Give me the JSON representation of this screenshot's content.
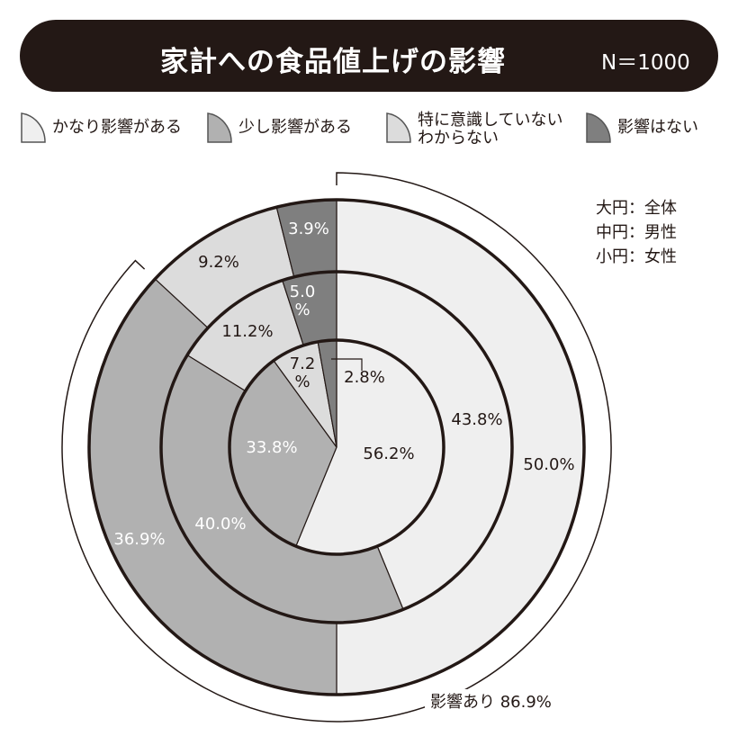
{
  "title": "家計への食品値上げの影響",
  "sample": "N＝1000",
  "key": [
    "大円：全体",
    "中円：男性",
    "小円：女性"
  ],
  "chart_data": {
    "type": "pie",
    "subtype": "nested-donut",
    "title": "家計への食品値上げの影響",
    "categories": [
      "かなり影響がある",
      "少し影響がある",
      "特に意識していない\nわからない",
      "影響はない"
    ],
    "colors": [
      "#efefef",
      "#b1b1b1",
      "#dcdcdc",
      "#7f7f7f"
    ],
    "series": [
      {
        "name": "全体",
        "ring": "outer",
        "values": [
          50.0,
          36.9,
          9.2,
          3.9
        ],
        "labels": [
          "50.0%",
          "36.9%",
          "9.2%",
          "3.9%"
        ]
      },
      {
        "name": "男性",
        "ring": "middle",
        "values": [
          43.8,
          40.0,
          11.2,
          5.0
        ],
        "labels": [
          "43.8%",
          "40.0%",
          "11.2%",
          "5.0\n%"
        ]
      },
      {
        "name": "女性",
        "ring": "inner",
        "values": [
          56.2,
          33.8,
          7.2,
          2.8
        ],
        "labels": [
          "56.2%",
          "33.8%",
          "7.2\n%",
          "2.8%"
        ]
      }
    ],
    "annotation": {
      "text": "影響あり 86.9%",
      "value": 86.9
    }
  }
}
